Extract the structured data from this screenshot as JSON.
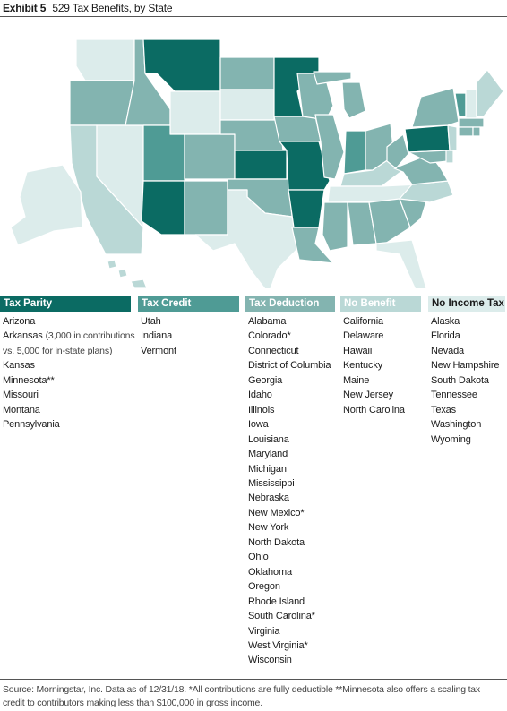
{
  "title": {
    "label": "Exhibit 5",
    "text": "529 Tax Benefits, by State"
  },
  "colors": {
    "tax_parity": "#0b6b63",
    "tax_credit": "#4f9b95",
    "tax_deduction": "#83b4b0",
    "no_benefit": "#bad8d6",
    "no_income_tax": "#dceceb",
    "no_income_tax_alt": "#e8f3f2"
  },
  "categories": [
    {
      "key": "tax_parity",
      "header": "Tax Parity",
      "header_color": "#0b6b63",
      "header_text_color": "#ffffff",
      "items": [
        "Arizona",
        "Arkansas",
        "Kansas",
        "Minnesota**",
        "Missouri",
        "Montana",
        "Pennsylvania"
      ],
      "arkansas_note_1": "(3,000 in contributions",
      "arkansas_note_2": "vs. 5,000 for in-state plans)"
    },
    {
      "key": "tax_credit",
      "header": "Tax Credit",
      "header_color": "#4f9b95",
      "header_text_color": "#ffffff",
      "items": [
        "Utah",
        "Indiana",
        "Vermont"
      ]
    },
    {
      "key": "tax_deduction",
      "header": "Tax Deduction",
      "header_color": "#83b4b0",
      "header_text_color": "#ffffff",
      "items": [
        "Alabama",
        "Colorado*",
        "Connecticut",
        "District of Columbia",
        "Georgia",
        "Idaho",
        "Illinois",
        "Iowa",
        "Louisiana",
        "Maryland",
        "Michigan",
        "Mississippi",
        "Nebraska",
        "New Mexico*",
        "New York",
        "North Dakota",
        "Ohio",
        "Oklahoma",
        "Oregon",
        "Rhode Island",
        "South Carolina*",
        "Virginia",
        "West Virginia*",
        "Wisconsin"
      ]
    },
    {
      "key": "no_benefit",
      "header": "No Benefit",
      "header_color": "#bad8d6",
      "header_text_color": "#ffffff",
      "items": [
        "California",
        "Delaware",
        "Hawaii",
        "Kentucky",
        "Maine",
        "New Jersey",
        "North Carolina"
      ]
    },
    {
      "key": "no_income_tax",
      "header": "No Income Tax",
      "header_color": "#dceceb",
      "header_text_color": "#1a1a1a",
      "items": [
        "Alaska",
        "Florida",
        "Nevada",
        "New Hampshire",
        "South Dakota",
        "Tennessee",
        "Texas",
        "Washington",
        "Wyoming"
      ]
    }
  ],
  "footnote": "Source: Morningstar, Inc. Data as of 12/31/18. *All contributions are fully deductible  **Minnesota also offers a scaling tax credit to contributors making less than $100,000 in gross income."
}
